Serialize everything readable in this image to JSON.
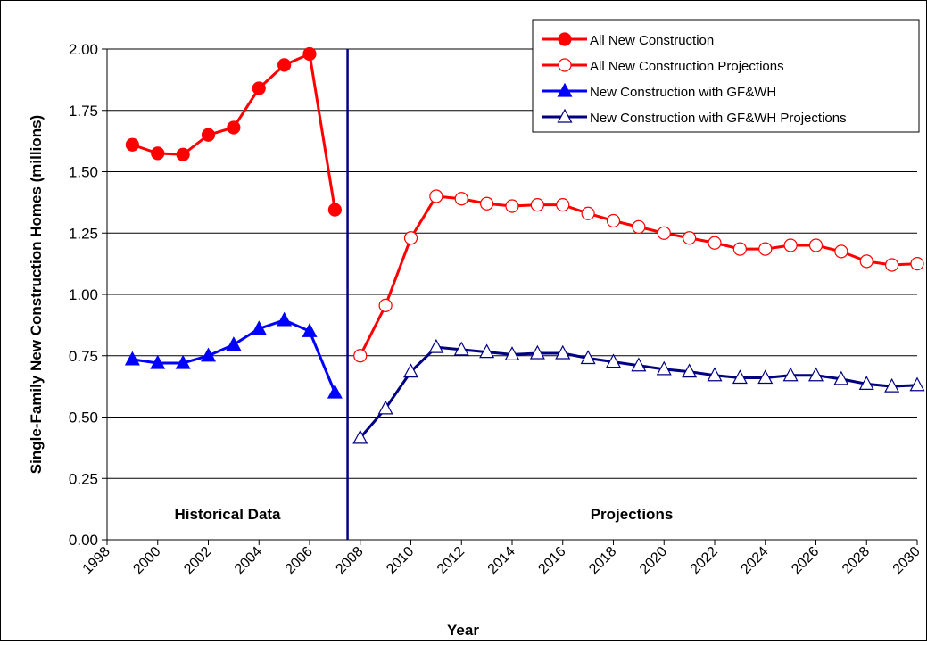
{
  "chart_data": {
    "type": "line",
    "x_label": "Year",
    "y_label": "Single-Family New Construction Homes (millions)",
    "annotations": [
      "Historical Data",
      "Projections"
    ],
    "xlim": [
      1998,
      2030
    ],
    "xticks": [
      1998,
      2000,
      2002,
      2004,
      2006,
      2008,
      2010,
      2012,
      2014,
      2016,
      2018,
      2020,
      2022,
      2024,
      2026,
      2028,
      2030
    ],
    "ylim": [
      0,
      2
    ],
    "yticks": [
      {
        "value": 0,
        "label": "0.00"
      },
      {
        "value": 0.25,
        "label": "0.25"
      },
      {
        "value": 0.5,
        "label": "0.50"
      },
      {
        "value": 0.75,
        "label": "0.75"
      },
      {
        "value": 1,
        "label": "1.00"
      },
      {
        "value": 1.25,
        "label": "1.25"
      },
      {
        "value": 1.5,
        "label": "1.50"
      },
      {
        "value": 1.75,
        "label": "1.75"
      },
      {
        "value": 2,
        "label": "2.00"
      }
    ],
    "grid": true,
    "legend": "top-right",
    "series": [
      {
        "name": "All New Construction",
        "color": "#ff0000",
        "marker": "circle",
        "filled": true,
        "x": [
          1999,
          2000,
          2001,
          2002,
          2003,
          2004,
          2005,
          2006,
          2007
        ],
        "values": [
          1.61,
          1.575,
          1.57,
          1.65,
          1.68,
          1.84,
          1.935,
          1.98,
          1.345
        ]
      },
      {
        "name": "All New Construction Projections",
        "color": "#ff0000",
        "marker": "circle",
        "filled": false,
        "x": [
          2008,
          2009,
          2010,
          2011,
          2012,
          2013,
          2014,
          2015,
          2016,
          2017,
          2018,
          2019,
          2020,
          2021,
          2022,
          2023,
          2024,
          2025,
          2026,
          2027,
          2028,
          2029,
          2030
        ],
        "values": [
          0.75,
          0.955,
          1.23,
          1.4,
          1.39,
          1.37,
          1.36,
          1.365,
          1.365,
          1.33,
          1.3,
          1.275,
          1.25,
          1.23,
          1.21,
          1.185,
          1.185,
          1.2,
          1.2,
          1.175,
          1.135,
          1.12,
          1.125
        ]
      },
      {
        "name": "New Construction with GF&WH",
        "color": "#0000ff",
        "marker": "triangle",
        "filled": true,
        "x": [
          1999,
          2000,
          2001,
          2002,
          2003,
          2004,
          2005,
          2006,
          2007
        ],
        "values": [
          0.735,
          0.72,
          0.72,
          0.75,
          0.795,
          0.86,
          0.895,
          0.85,
          0.6
        ]
      },
      {
        "name": "New Construction with GF&WH Projections",
        "color": "#000080",
        "marker": "triangle",
        "filled": false,
        "x": [
          2008,
          2009,
          2010,
          2011,
          2012,
          2013,
          2014,
          2015,
          2016,
          2017,
          2018,
          2019,
          2020,
          2021,
          2022,
          2023,
          2024,
          2025,
          2026,
          2027,
          2028,
          2029,
          2030
        ],
        "values": [
          0.415,
          0.535,
          0.685,
          0.785,
          0.775,
          0.765,
          0.755,
          0.76,
          0.76,
          0.74,
          0.725,
          0.71,
          0.695,
          0.685,
          0.67,
          0.66,
          0.66,
          0.67,
          0.67,
          0.655,
          0.635,
          0.625,
          0.63
        ]
      }
    ]
  }
}
